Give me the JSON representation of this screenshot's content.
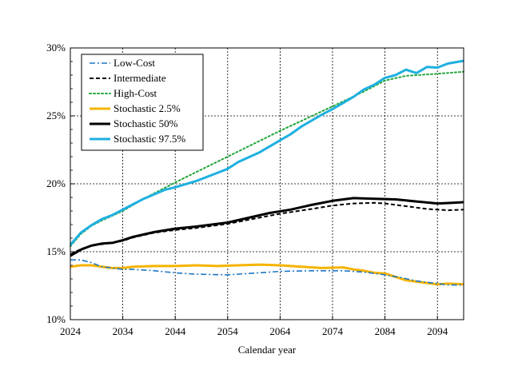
{
  "chart_data": {
    "type": "line",
    "title": "",
    "xlabel": "Calendar year",
    "ylabel": "",
    "xlim": [
      2024,
      2099
    ],
    "ylim": [
      10,
      30
    ],
    "x_ticks": [
      2024,
      2034,
      2044,
      2054,
      2064,
      2074,
      2084,
      2094
    ],
    "y_ticks": [
      10,
      15,
      20,
      25,
      30
    ],
    "y_tick_suffix": "%",
    "grid": true,
    "legend_position": "top-left",
    "series": [
      {
        "name": "Low-Cost",
        "color": "#1f77c4",
        "dash": "dash-dot",
        "points": [
          [
            2024,
            14.4
          ],
          [
            2026,
            14.4
          ],
          [
            2028,
            14.2
          ],
          [
            2030,
            13.9
          ],
          [
            2032,
            13.8
          ],
          [
            2034,
            13.7
          ],
          [
            2036,
            13.7
          ],
          [
            2040,
            13.6
          ],
          [
            2044,
            13.45
          ],
          [
            2048,
            13.35
          ],
          [
            2054,
            13.3
          ],
          [
            2060,
            13.45
          ],
          [
            2064,
            13.55
          ],
          [
            2070,
            13.6
          ],
          [
            2076,
            13.6
          ],
          [
            2080,
            13.5
          ],
          [
            2084,
            13.3
          ],
          [
            2087,
            13.1
          ],
          [
            2090,
            12.85
          ],
          [
            2094,
            12.65
          ],
          [
            2096,
            12.55
          ],
          [
            2099,
            12.55
          ]
        ]
      },
      {
        "name": "Intermediate",
        "color": "#000000",
        "dash": "dash",
        "points": [
          [
            2024,
            14.8
          ],
          [
            2026,
            15.2
          ],
          [
            2028,
            15.45
          ],
          [
            2030,
            15.55
          ],
          [
            2032,
            15.65
          ],
          [
            2034,
            15.8
          ],
          [
            2036,
            16.05
          ],
          [
            2040,
            16.4
          ],
          [
            2044,
            16.6
          ],
          [
            2048,
            16.75
          ],
          [
            2054,
            17.05
          ],
          [
            2058,
            17.35
          ],
          [
            2064,
            17.8
          ],
          [
            2070,
            18.15
          ],
          [
            2074,
            18.4
          ],
          [
            2078,
            18.55
          ],
          [
            2082,
            18.6
          ],
          [
            2084,
            18.55
          ],
          [
            2088,
            18.35
          ],
          [
            2092,
            18.15
          ],
          [
            2096,
            18.05
          ],
          [
            2099,
            18.1
          ]
        ]
      },
      {
        "name": "High-Cost",
        "color": "#22a63a",
        "dash": "dot",
        "points": [
          [
            2024,
            15.4
          ],
          [
            2026,
            16.3
          ],
          [
            2028,
            16.9
          ],
          [
            2030,
            17.3
          ],
          [
            2034,
            18.0
          ],
          [
            2038,
            18.9
          ],
          [
            2044,
            20.1
          ],
          [
            2054,
            22.0
          ],
          [
            2064,
            23.9
          ],
          [
            2074,
            25.7
          ],
          [
            2080,
            26.8
          ],
          [
            2084,
            27.6
          ],
          [
            2088,
            27.95
          ],
          [
            2094,
            28.1
          ],
          [
            2099,
            28.25
          ]
        ]
      },
      {
        "name": "Stochastic 2.5%",
        "color": "#f5b400",
        "dash": "solid",
        "points": [
          [
            2024,
            13.9
          ],
          [
            2026,
            14.0
          ],
          [
            2028,
            14.0
          ],
          [
            2030,
            13.9
          ],
          [
            2032,
            13.8
          ],
          [
            2034,
            13.8
          ],
          [
            2036,
            13.9
          ],
          [
            2040,
            13.95
          ],
          [
            2044,
            13.95
          ],
          [
            2048,
            14.0
          ],
          [
            2052,
            13.95
          ],
          [
            2056,
            14.0
          ],
          [
            2060,
            14.05
          ],
          [
            2064,
            14.0
          ],
          [
            2068,
            13.9
          ],
          [
            2072,
            13.8
          ],
          [
            2076,
            13.85
          ],
          [
            2078,
            13.7
          ],
          [
            2080,
            13.6
          ],
          [
            2082,
            13.45
          ],
          [
            2084,
            13.4
          ],
          [
            2086,
            13.15
          ],
          [
            2088,
            12.9
          ],
          [
            2090,
            12.8
          ],
          [
            2092,
            12.7
          ],
          [
            2094,
            12.6
          ],
          [
            2096,
            12.65
          ],
          [
            2099,
            12.6
          ]
        ]
      },
      {
        "name": "Stochastic 50%",
        "color": "#000000",
        "dash": "solid",
        "points": [
          [
            2024,
            14.7
          ],
          [
            2026,
            15.15
          ],
          [
            2028,
            15.45
          ],
          [
            2030,
            15.6
          ],
          [
            2032,
            15.65
          ],
          [
            2034,
            15.85
          ],
          [
            2036,
            16.1
          ],
          [
            2040,
            16.45
          ],
          [
            2044,
            16.7
          ],
          [
            2048,
            16.85
          ],
          [
            2054,
            17.15
          ],
          [
            2058,
            17.5
          ],
          [
            2062,
            17.85
          ],
          [
            2066,
            18.1
          ],
          [
            2070,
            18.45
          ],
          [
            2074,
            18.75
          ],
          [
            2078,
            18.95
          ],
          [
            2082,
            18.9
          ],
          [
            2086,
            18.85
          ],
          [
            2090,
            18.7
          ],
          [
            2094,
            18.55
          ],
          [
            2097,
            18.6
          ],
          [
            2099,
            18.65
          ]
        ]
      },
      {
        "name": "Stochastic 97.5%",
        "color": "#1fb0e0",
        "dash": "solid",
        "points": [
          [
            2024,
            15.5
          ],
          [
            2026,
            16.4
          ],
          [
            2028,
            16.95
          ],
          [
            2030,
            17.4
          ],
          [
            2032,
            17.7
          ],
          [
            2034,
            18.1
          ],
          [
            2036,
            18.5
          ],
          [
            2038,
            18.9
          ],
          [
            2042,
            19.55
          ],
          [
            2044,
            19.75
          ],
          [
            2048,
            20.2
          ],
          [
            2052,
            20.8
          ],
          [
            2054,
            21.1
          ],
          [
            2056,
            21.6
          ],
          [
            2060,
            22.3
          ],
          [
            2064,
            23.2
          ],
          [
            2066,
            23.65
          ],
          [
            2068,
            24.2
          ],
          [
            2072,
            25.1
          ],
          [
            2074,
            25.5
          ],
          [
            2076,
            25.95
          ],
          [
            2078,
            26.4
          ],
          [
            2080,
            26.95
          ],
          [
            2082,
            27.3
          ],
          [
            2084,
            27.8
          ],
          [
            2086,
            28.0
          ],
          [
            2088,
            28.4
          ],
          [
            2090,
            28.15
          ],
          [
            2092,
            28.6
          ],
          [
            2094,
            28.55
          ],
          [
            2096,
            28.85
          ],
          [
            2099,
            29.05
          ]
        ]
      }
    ]
  }
}
